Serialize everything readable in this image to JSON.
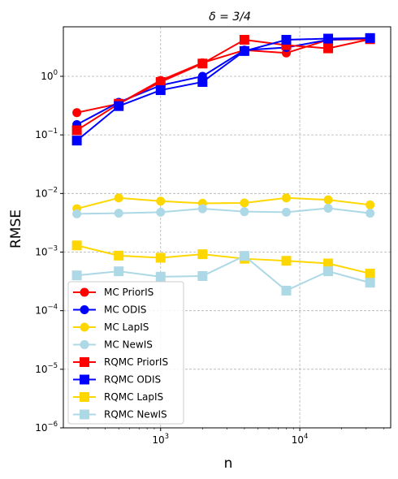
{
  "chart_data": {
    "type": "line",
    "title": "δ = 3/4",
    "xlabel": "n",
    "ylabel": "RMSE",
    "xscale": "log",
    "yscale": "log",
    "xlim": [
      200,
      45000
    ],
    "ylim": [
      1e-06,
      7
    ],
    "grid": true,
    "legend_position": "lower-left",
    "x_ticks": [
      {
        "value": 1000,
        "base": "10",
        "exp": "3"
      },
      {
        "value": 10000,
        "base": "10",
        "exp": "4"
      }
    ],
    "y_ticks": [
      {
        "value": 1e-06,
        "base": "10",
        "exp": "−6"
      },
      {
        "value": 1e-05,
        "base": "10",
        "exp": "−5"
      },
      {
        "value": 0.0001,
        "base": "10",
        "exp": "−4"
      },
      {
        "value": 0.001,
        "base": "10",
        "exp": "−3"
      },
      {
        "value": 0.01,
        "base": "10",
        "exp": "−2"
      },
      {
        "value": 0.1,
        "base": "10",
        "exp": "−1"
      },
      {
        "value": 1,
        "base": "10",
        "exp": "0"
      }
    ],
    "x": [
      250,
      500,
      1000,
      2000,
      4000,
      8000,
      16000,
      32000
    ],
    "series": [
      {
        "name": "MC PriorIS",
        "color": "#ff0000",
        "marker": "circle",
        "values": [
          0.24,
          0.34,
          0.85,
          1.7,
          2.8,
          2.5,
          4.2,
          4.3
        ]
      },
      {
        "name": "MC ODIS",
        "color": "#0000ff",
        "marker": "circle",
        "values": [
          0.15,
          0.36,
          0.7,
          1.0,
          2.8,
          3.1,
          4.2,
          4.5
        ]
      },
      {
        "name": "MC LapIS",
        "color": "#ffd700",
        "marker": "circle",
        "values": [
          0.0055,
          0.0084,
          0.0074,
          0.0068,
          0.0069,
          0.0084,
          0.0078,
          0.0064
        ]
      },
      {
        "name": "MC NewIS",
        "color": "#add8e6",
        "marker": "circle",
        "values": [
          0.0045,
          0.0046,
          0.0048,
          0.0055,
          0.0049,
          0.0048,
          0.0056,
          0.0046
        ]
      },
      {
        "name": "RQMC PriorIS",
        "color": "#ff0000",
        "marker": "square",
        "values": [
          0.12,
          0.34,
          0.8,
          1.65,
          4.2,
          3.4,
          3.0,
          4.3
        ]
      },
      {
        "name": "RQMC ODIS",
        "color": "#0000ff",
        "marker": "square",
        "values": [
          0.08,
          0.31,
          0.58,
          0.8,
          2.7,
          4.2,
          4.4,
          4.5
        ]
      },
      {
        "name": "RQMC LapIS",
        "color": "#ffd700",
        "marker": "square",
        "values": [
          0.0013,
          0.00087,
          0.0008,
          0.00092,
          0.00077,
          0.00071,
          0.00064,
          0.00043
        ]
      },
      {
        "name": "RQMC NewIS",
        "color": "#add8e6",
        "marker": "square",
        "values": [
          0.0004,
          0.00047,
          0.00038,
          0.00039,
          0.00086,
          0.00022,
          0.00047,
          0.0003
        ]
      }
    ]
  }
}
